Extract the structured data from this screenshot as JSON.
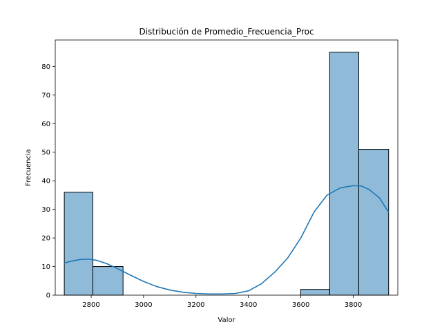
{
  "chart_data": {
    "type": "histogram",
    "title": "Distribución de Promedio_Frecuencia_Proc",
    "xlabel": "Valor",
    "ylabel": "Frecuencia",
    "xlim": [
      2663,
      3970
    ],
    "ylim": [
      0,
      89.25
    ],
    "x_ticks": [
      2800,
      3000,
      3200,
      3400,
      3600,
      3800
    ],
    "y_ticks": [
      0,
      10,
      20,
      30,
      40,
      50,
      60,
      70,
      80
    ],
    "bins": [
      {
        "x0": 2697.5,
        "x1": 2806.5,
        "count": 36
      },
      {
        "x0": 2806.5,
        "x1": 2921.7,
        "count": 10
      },
      {
        "x0": 3599.4,
        "x1": 3710.0,
        "count": 2
      },
      {
        "x0": 3710.0,
        "x1": 3821.0,
        "count": 85
      },
      {
        "x0": 3821.0,
        "x1": 3935.0,
        "count": 51
      }
    ],
    "kde": {
      "x": [
        2697,
        2720,
        2760,
        2790,
        2820,
        2860,
        2900,
        2950,
        3000,
        3050,
        3100,
        3150,
        3200,
        3250,
        3300,
        3350,
        3400,
        3450,
        3500,
        3550,
        3600,
        3650,
        3700,
        3750,
        3800,
        3830,
        3860,
        3900,
        3935
      ],
      "y": [
        11.2,
        11.8,
        12.5,
        12.6,
        12.2,
        11.0,
        9.3,
        7.0,
        4.8,
        3.0,
        1.8,
        1.0,
        0.6,
        0.4,
        0.4,
        0.6,
        1.5,
        4.0,
        8.0,
        13.0,
        20.0,
        29.0,
        35.0,
        37.5,
        38.3,
        38.2,
        37.0,
        34.0,
        29.0
      ]
    },
    "bar_color": "#1f77b4",
    "bar_alpha": 0.5,
    "kde_color": "#1f77b4",
    "grid": false
  }
}
